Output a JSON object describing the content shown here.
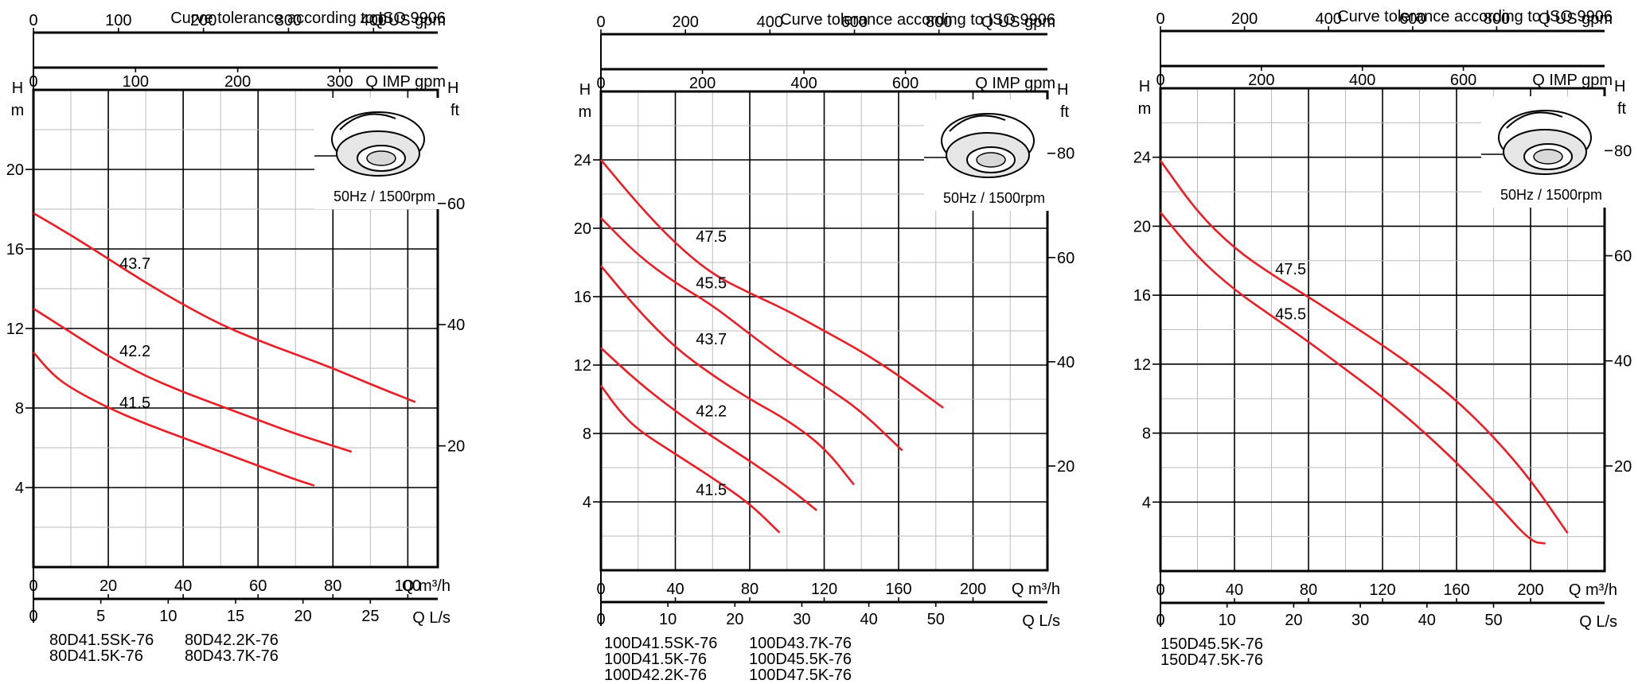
{
  "chart_data": [
    {
      "type": "line",
      "title": "Curve tolerance according to ISO 9906",
      "note": "50Hz / 1500rpm",
      "x_label": "Q m³/h",
      "x_ticks": [
        0,
        20,
        40,
        60,
        80,
        100
      ],
      "xlim": [
        0,
        108
      ],
      "ls_label": "Q L/s",
      "ls_ticks": [
        0,
        5,
        10,
        15,
        20,
        25
      ],
      "us_label": "Q US gpm",
      "us_ticks": [
        0,
        100,
        200,
        300,
        400
      ],
      "imp_label": "Q IMP gpm",
      "imp_ticks": [
        0,
        100,
        200,
        300
      ],
      "y_label": "H\nm",
      "y_ticks": [
        4,
        8,
        12,
        16,
        20
      ],
      "ylim": [
        0,
        24
      ],
      "ft_label": "H\nft",
      "ft_ticks": [
        20,
        40,
        60
      ],
      "series": [
        {
          "name": "43.7",
          "x": [
            0,
            10,
            20,
            30,
            40,
            50,
            60,
            70,
            80,
            90,
            102
          ],
          "y": [
            17.8,
            16.7,
            15.5,
            14.3,
            13.2,
            12.2,
            11.4,
            10.7,
            10.0,
            9.2,
            8.3
          ]
        },
        {
          "name": "42.2",
          "x": [
            0,
            10,
            20,
            30,
            40,
            50,
            60,
            70,
            80,
            85
          ],
          "y": [
            13.0,
            11.8,
            10.6,
            9.6,
            8.8,
            8.1,
            7.4,
            6.7,
            6.1,
            5.8
          ]
        },
        {
          "name": "41.5",
          "x": [
            0,
            5,
            10,
            20,
            30,
            40,
            50,
            60,
            70,
            75
          ],
          "y": [
            10.8,
            9.7,
            9.0,
            8.0,
            7.2,
            6.5,
            5.8,
            5.1,
            4.4,
            4.1
          ]
        }
      ],
      "labels": [
        {
          "text": "43.7",
          "x": 23,
          "y": 15.0
        },
        {
          "text": "42.2",
          "x": 23,
          "y": 10.6
        },
        {
          "text": "41.5",
          "x": 23,
          "y": 8.0
        }
      ],
      "models": [
        "80D41.5SK-76",
        "80D41.5K-76",
        "80D42.2K-76",
        "80D43.7K-76"
      ]
    },
    {
      "type": "line",
      "title": "Curve tolerance according to ISO 9906",
      "note": "50Hz / 1500rpm",
      "x_label": "Q m³/h",
      "x_ticks": [
        0,
        40,
        80,
        120,
        160,
        200
      ],
      "xlim": [
        0,
        240
      ],
      "ls_label": "Q L/s",
      "ls_ticks": [
        0,
        10,
        20,
        30,
        40,
        50
      ],
      "us_label": "Q US gpm",
      "us_ticks": [
        0,
        200,
        400,
        600,
        800
      ],
      "imp_label": "Q IMP gpm",
      "imp_ticks": [
        0,
        200,
        400,
        600
      ],
      "y_label": "H\nm",
      "y_ticks": [
        4,
        8,
        12,
        16,
        20,
        24
      ],
      "ylim": [
        0,
        28
      ],
      "ft_label": "H\nft",
      "ft_ticks": [
        20,
        40,
        60,
        80
      ],
      "series": [
        {
          "name": "47.5",
          "x": [
            0,
            20,
            40,
            60,
            80,
            100,
            120,
            140,
            160,
            184
          ],
          "y": [
            24.0,
            21.4,
            19.1,
            17.3,
            16.2,
            15.2,
            14.0,
            12.8,
            11.4,
            9.5
          ]
        },
        {
          "name": "45.5",
          "x": [
            0,
            20,
            40,
            60,
            80,
            100,
            120,
            140,
            162
          ],
          "y": [
            20.6,
            18.4,
            16.8,
            15.5,
            13.8,
            12.2,
            10.8,
            9.3,
            7.0
          ]
        },
        {
          "name": "43.7",
          "x": [
            0,
            20,
            40,
            60,
            80,
            100,
            120,
            136
          ],
          "y": [
            17.8,
            15.2,
            13.0,
            11.4,
            10.0,
            8.8,
            7.2,
            5.0
          ]
        },
        {
          "name": "42.2",
          "x": [
            0,
            20,
            40,
            60,
            80,
            100,
            116
          ],
          "y": [
            13.0,
            11.0,
            9.3,
            7.8,
            6.4,
            4.9,
            3.5
          ]
        },
        {
          "name": "41.5",
          "x": [
            0,
            10,
            20,
            40,
            60,
            80,
            96
          ],
          "y": [
            10.8,
            9.3,
            8.2,
            6.8,
            5.4,
            3.9,
            2.2
          ]
        }
      ],
      "labels": [
        {
          "text": "47.5",
          "x": 51,
          "y": 19.2
        },
        {
          "text": "45.5",
          "x": 51,
          "y": 16.5
        },
        {
          "text": "43.7",
          "x": 51,
          "y": 13.2
        },
        {
          "text": "42.2",
          "x": 51,
          "y": 9.0
        },
        {
          "text": "41.5",
          "x": 51,
          "y": 4.4
        }
      ],
      "models": [
        "100D41.5SK-76",
        "100D41.5K-76",
        "100D42.2K-76",
        "100D43.7K-76",
        "100D45.5K-76",
        "100D47.5K-76"
      ]
    },
    {
      "type": "line",
      "title": "Curve tolerance according to ISO 9906",
      "note": "50Hz / 1500rpm",
      "x_label": "Q m³/h",
      "x_ticks": [
        0,
        40,
        80,
        120,
        160,
        200
      ],
      "xlim": [
        0,
        240
      ],
      "ls_label": "Q L/s",
      "ls_ticks": [
        0,
        10,
        20,
        30,
        40,
        50
      ],
      "us_label": "Q US gpm",
      "us_ticks": [
        0,
        200,
        400,
        600,
        800
      ],
      "imp_label": "Q IMP gpm",
      "imp_ticks": [
        0,
        200,
        400,
        600
      ],
      "y_label": "H\nm",
      "y_ticks": [
        4,
        8,
        12,
        16,
        20,
        24
      ],
      "ylim": [
        0,
        28
      ],
      "ft_label": "H\nft",
      "ft_ticks": [
        20,
        40,
        60,
        80
      ],
      "series": [
        {
          "name": "47.5",
          "x": [
            0,
            20,
            40,
            60,
            80,
            100,
            120,
            140,
            160,
            180,
            200,
            220
          ],
          "y": [
            23.8,
            20.8,
            18.7,
            17.2,
            15.9,
            14.5,
            13.1,
            11.6,
            9.9,
            7.8,
            5.3,
            2.2
          ]
        },
        {
          "name": "45.5",
          "x": [
            0,
            20,
            40,
            60,
            80,
            100,
            120,
            140,
            160,
            180,
            200,
            208
          ],
          "y": [
            20.8,
            18.2,
            16.3,
            14.8,
            13.3,
            11.7,
            10.1,
            8.3,
            6.3,
            4.1,
            1.7,
            1.6
          ]
        }
      ],
      "labels": [
        {
          "text": "47.5",
          "x": 62,
          "y": 17.2
        },
        {
          "text": "45.5",
          "x": 62,
          "y": 14.6
        }
      ],
      "models": [
        "150D45.5K-76",
        "150D47.5K-76"
      ]
    }
  ]
}
